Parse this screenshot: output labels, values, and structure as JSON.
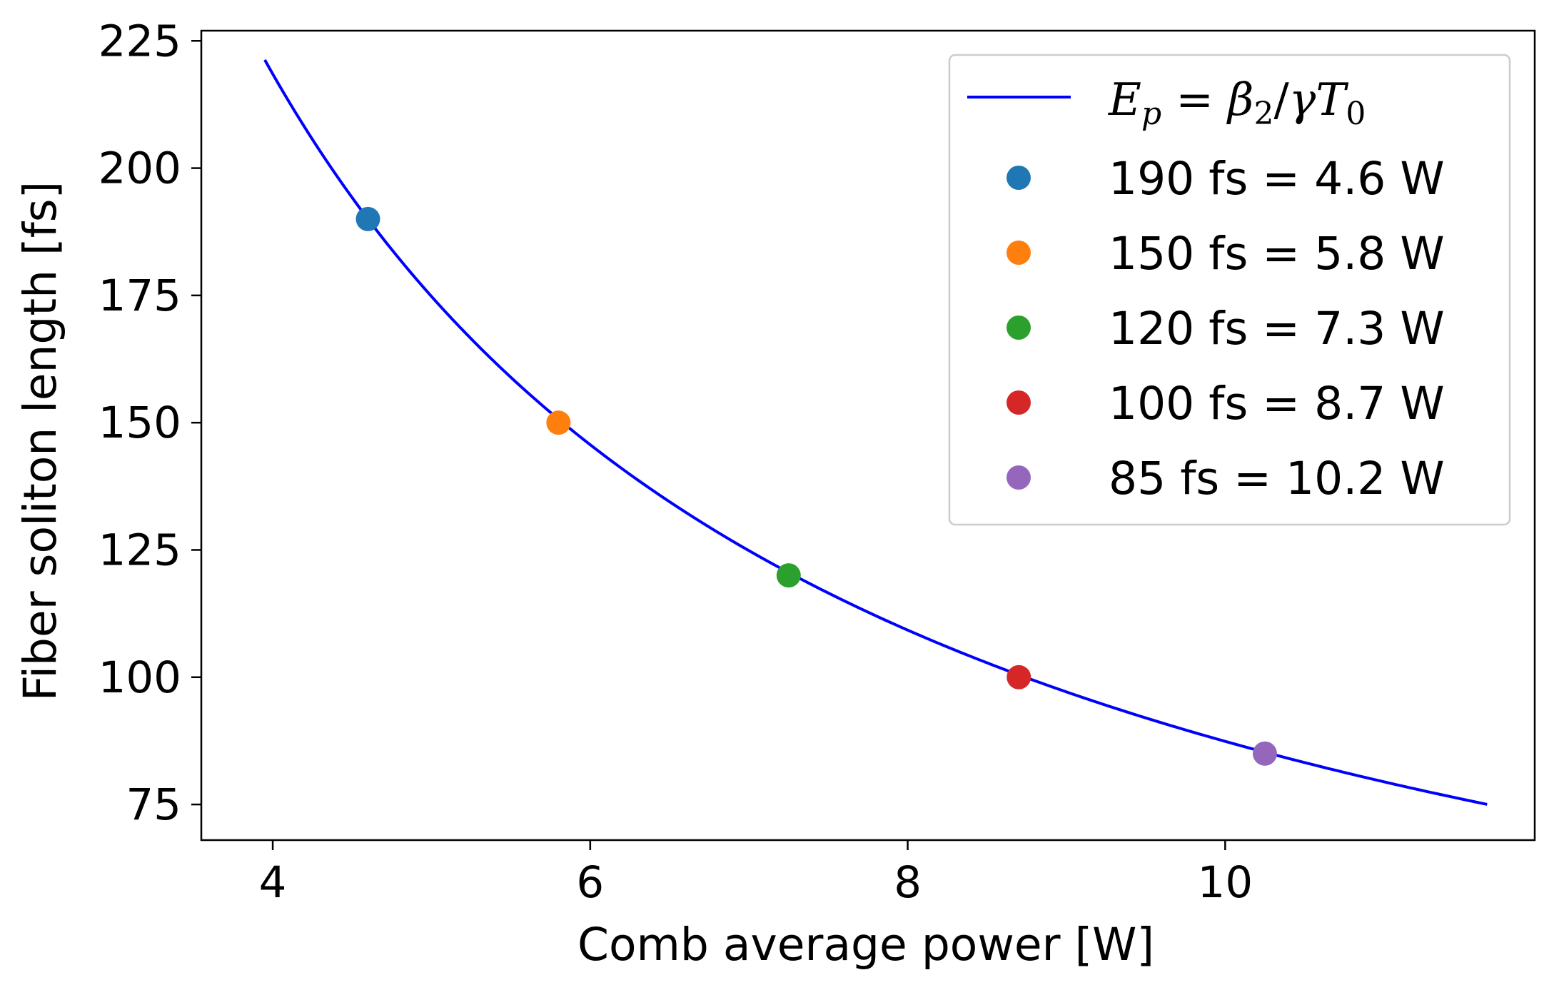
{
  "chart_data": {
    "type": "line",
    "xlabel": "Comb average power [W]",
    "ylabel": "Fiber soliton length [fs]",
    "xlim": [
      3.55,
      11.95
    ],
    "ylim": [
      68,
      227
    ],
    "xticks": [
      4,
      6,
      8,
      10
    ],
    "yticks": [
      75,
      100,
      125,
      150,
      175,
      200,
      225
    ],
    "grid": false,
    "legend_position": "top-right",
    "curve": {
      "legend_label": "E_p = β_2/γT_0",
      "color": "#0000ff",
      "relation": "y = 874 / x",
      "x_range": [
        3.95,
        11.65
      ]
    },
    "points": [
      {
        "label": "190 fs = 4.6 W",
        "x": 4.6,
        "y": 190,
        "color": "#1f77b4"
      },
      {
        "label": "150 fs = 5.8 W",
        "x": 5.8,
        "y": 150,
        "color": "#ff7f0e"
      },
      {
        "label": "120 fs = 7.3 W",
        "x": 7.25,
        "y": 120,
        "color": "#2ca02c"
      },
      {
        "label": "100 fs = 8.7 W",
        "x": 8.7,
        "y": 100,
        "color": "#d62728"
      },
      {
        "label": "85 fs = 10.2 W",
        "x": 10.25,
        "y": 85,
        "color": "#9467bd"
      }
    ]
  }
}
